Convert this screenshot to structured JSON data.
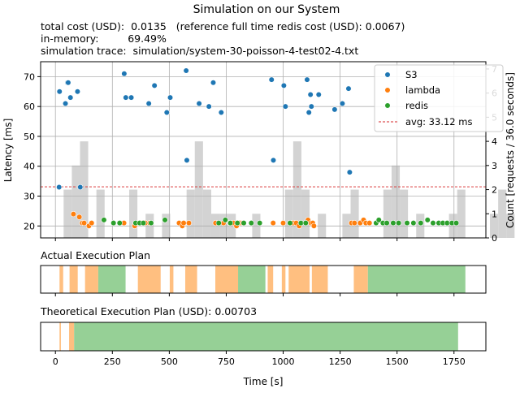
{
  "chart_data": {
    "type": "scatter",
    "title": "Simulation on our System",
    "info_lines": [
      "total cost (USD):  0.0135   (reference full time redis cost (USD): 0.0067)",
      "in-memory:         69.49%",
      "simulation trace:  simulation/system-30-poisson-4-test02-4.txt"
    ],
    "xlabel": "Time [s]",
    "ylabel": "Latency [ms]",
    "y2label": "Count [requests / 36.0 seconds]",
    "xlim": [
      -65,
      1890
    ],
    "ylim": [
      16,
      75
    ],
    "y2lim": [
      0,
      7.3
    ],
    "x_ticks": [
      0,
      250,
      500,
      750,
      1000,
      1250,
      1500,
      1750
    ],
    "y_ticks": [
      20,
      30,
      40,
      50,
      60,
      70
    ],
    "y2_ticks": [
      0,
      1,
      2,
      3,
      4,
      5,
      6,
      7
    ],
    "grid": true,
    "legend_position": "top-right",
    "colors": {
      "S3": "#1f77b4",
      "lambda": "#ff7f0e",
      "redis": "#2ca02c",
      "avg": "#d62728",
      "hist": "#d3d3d3",
      "lambda_plan": "#ffbf80",
      "redis_plan": "#96d096"
    },
    "legend": {
      "s3": "S3",
      "lambda": "lambda",
      "redis": "redis",
      "avg": "avg: 33.12 ms"
    },
    "avg_latency": 33.12,
    "histogram_bin_width": 36,
    "histogram_counts": [
      0,
      2,
      3,
      4,
      0,
      2,
      0,
      0,
      0,
      2,
      0,
      1,
      0,
      1,
      0,
      0,
      2,
      4,
      2,
      1,
      1,
      1,
      0,
      0,
      1,
      0,
      0,
      0,
      2,
      4,
      2,
      0,
      1,
      0,
      0,
      1,
      2,
      0,
      0,
      0,
      2,
      3,
      2,
      0,
      1,
      0,
      0,
      0,
      1,
      2,
      0,
      0,
      0,
      1,
      2,
      1,
      0,
      0,
      2,
      3,
      2,
      1,
      0,
      1,
      0,
      1,
      0,
      0,
      1,
      0,
      1,
      2,
      1,
      1,
      2,
      2,
      2,
      0,
      1,
      1,
      1,
      1,
      1,
      0,
      0,
      0,
      1,
      2,
      2,
      0,
      0,
      1,
      2,
      3,
      4,
      0,
      1,
      0,
      0,
      0,
      0,
      0,
      0,
      0
    ],
    "series": [
      {
        "name": "S3",
        "points": [
          [
            16,
            33
          ],
          [
            18,
            65
          ],
          [
            44,
            61
          ],
          [
            53,
            68
          ],
          [
            56,
            68
          ],
          [
            66,
            63
          ],
          [
            97,
            65
          ],
          [
            109,
            33
          ],
          [
            302,
            71
          ],
          [
            309,
            63
          ],
          [
            333,
            63
          ],
          [
            410,
            61
          ],
          [
            435,
            67
          ],
          [
            489,
            58
          ],
          [
            504,
            63
          ],
          [
            574,
            72
          ],
          [
            577,
            42
          ],
          [
            631,
            61
          ],
          [
            674,
            60
          ],
          [
            693,
            68
          ],
          [
            728,
            58
          ],
          [
            949,
            69
          ],
          [
            957,
            42
          ],
          [
            1003,
            67
          ],
          [
            1010,
            60
          ],
          [
            1105,
            69
          ],
          [
            1113,
            58
          ],
          [
            1120,
            64
          ],
          [
            1124,
            60
          ],
          [
            1156,
            64
          ],
          [
            1226,
            59
          ],
          [
            1260,
            61
          ],
          [
            1287,
            66
          ],
          [
            1292,
            38
          ]
        ]
      },
      {
        "name": "lambda",
        "points": [
          [
            79,
            24
          ],
          [
            105,
            23
          ],
          [
            118,
            21
          ],
          [
            126,
            21
          ],
          [
            147,
            20
          ],
          [
            159,
            21
          ],
          [
            301,
            21
          ],
          [
            348,
            20
          ],
          [
            366,
            21
          ],
          [
            382,
            21
          ],
          [
            395,
            21
          ],
          [
            414,
            21
          ],
          [
            543,
            21
          ],
          [
            557,
            20
          ],
          [
            563,
            21
          ],
          [
            586,
            21
          ],
          [
            703,
            21
          ],
          [
            738,
            21
          ],
          [
            766,
            21
          ],
          [
            781,
            21
          ],
          [
            795,
            20
          ],
          [
            810,
            21
          ],
          [
            822,
            21
          ],
          [
            956,
            21
          ],
          [
            1000,
            21
          ],
          [
            1032,
            21
          ],
          [
            1044,
            21
          ],
          [
            1057,
            21
          ],
          [
            1070,
            20
          ],
          [
            1109,
            22
          ],
          [
            1122,
            21
          ],
          [
            1130,
            21
          ],
          [
            1135,
            20
          ],
          [
            1300,
            21
          ],
          [
            1313,
            21
          ],
          [
            1338,
            21
          ],
          [
            1353,
            22
          ],
          [
            1363,
            21
          ],
          [
            1379,
            21
          ]
        ]
      },
      {
        "name": "redis",
        "points": [
          [
            213,
            22
          ],
          [
            255,
            21
          ],
          [
            282,
            21
          ],
          [
            352,
            21
          ],
          [
            370,
            21
          ],
          [
            386,
            21
          ],
          [
            420,
            21
          ],
          [
            481,
            22
          ],
          [
            717,
            21
          ],
          [
            746,
            22
          ],
          [
            768,
            21
          ],
          [
            799,
            21
          ],
          [
            827,
            21
          ],
          [
            860,
            21
          ],
          [
            897,
            21
          ],
          [
            1030,
            21
          ],
          [
            1078,
            21
          ],
          [
            1099,
            21
          ],
          [
            1408,
            21
          ],
          [
            1420,
            22
          ],
          [
            1438,
            21
          ],
          [
            1455,
            21
          ],
          [
            1483,
            21
          ],
          [
            1507,
            21
          ],
          [
            1544,
            21
          ],
          [
            1572,
            21
          ],
          [
            1604,
            21
          ],
          [
            1634,
            22
          ],
          [
            1658,
            21
          ],
          [
            1683,
            21
          ],
          [
            1701,
            21
          ],
          [
            1720,
            21
          ],
          [
            1741,
            21
          ],
          [
            1760,
            21
          ]
        ]
      }
    ],
    "plans": [
      {
        "title": "Actual Execution Plan",
        "lambda": [
          [
            18,
            34
          ],
          [
            62,
            98
          ],
          [
            130,
            188
          ],
          [
            362,
            462
          ],
          [
            502,
            518
          ],
          [
            570,
            622
          ],
          [
            702,
            802
          ],
          [
            932,
            956
          ],
          [
            994,
            1010
          ],
          [
            1024,
            1116
          ],
          [
            1126,
            1196
          ],
          [
            1310,
            1372
          ]
        ],
        "redis": [
          [
            188,
            308
          ],
          [
            802,
            922
          ],
          [
            1372,
            1800
          ]
        ]
      },
      {
        "title": "Theoretical Execution Plan (USD): 0.00703",
        "lambda": [
          [
            18,
            24
          ],
          [
            60,
            82
          ]
        ],
        "redis": [
          [
            82,
            1768
          ]
        ]
      }
    ]
  }
}
